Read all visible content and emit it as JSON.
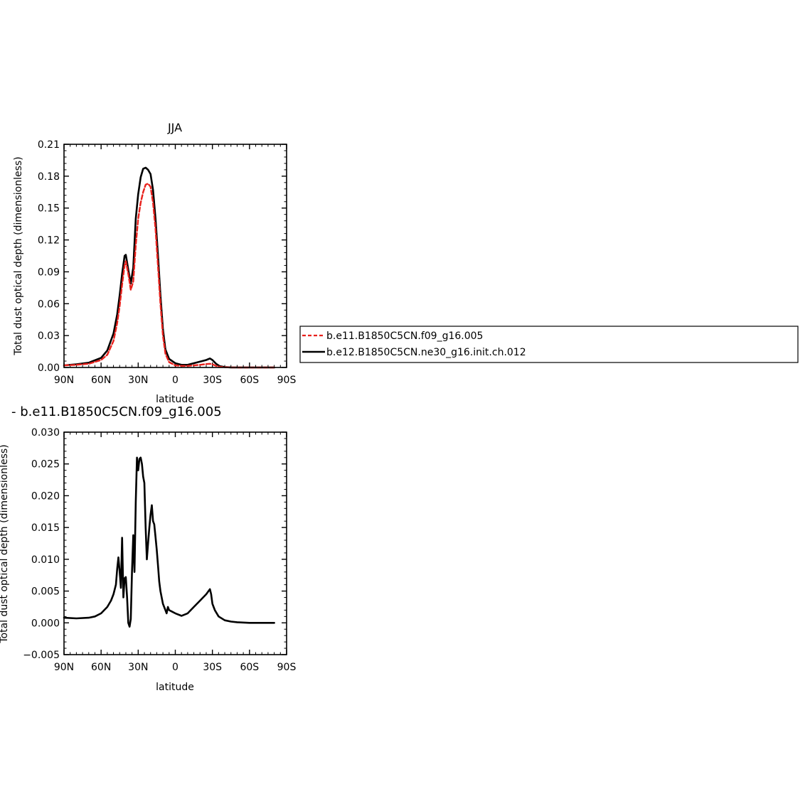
{
  "chart_data": [
    {
      "type": "line",
      "title": "JJA",
      "xlabel": "latitude",
      "ylabel": "Total dust optical depth (dimensionless)",
      "xlim": [
        -90,
        90
      ],
      "ylim": [
        0,
        0.21
      ],
      "xticks": [
        -90,
        -60,
        -30,
        0,
        30,
        60,
        90
      ],
      "xtick_labels": [
        "90N",
        "60N",
        "30N",
        "0",
        "30S",
        "60S",
        "90S"
      ],
      "yticks": [
        0,
        0.03,
        0.06,
        0.09,
        0.12,
        0.15,
        0.18,
        0.21
      ],
      "ytick_labels": [
        "0.00",
        "0.03",
        "0.06",
        "0.09",
        "0.12",
        "0.15",
        "0.18",
        "0.21"
      ],
      "legend": "right",
      "series": [
        {
          "name": "b.e11.B1850C5CN.f09_g16.005",
          "color": "#e8211c",
          "style": "dashed",
          "x": [
            -90,
            -80,
            -70,
            -60,
            -55,
            -50,
            -47,
            -45,
            -43,
            -41,
            -40,
            -38,
            -36,
            -34,
            -32,
            -30,
            -28,
            -26,
            -24,
            -22,
            -20,
            -18,
            -16,
            -14,
            -12,
            -10,
            -8,
            -5,
            0,
            5,
            10,
            15,
            20,
            25,
            28,
            30,
            33,
            36,
            40,
            45,
            50,
            60,
            70,
            80
          ],
          "y": [
            0.002,
            0.0025,
            0.0035,
            0.007,
            0.012,
            0.025,
            0.042,
            0.058,
            0.078,
            0.096,
            0.1,
            0.088,
            0.073,
            0.081,
            0.115,
            0.14,
            0.155,
            0.165,
            0.172,
            0.173,
            0.17,
            0.155,
            0.13,
            0.095,
            0.06,
            0.03,
            0.013,
            0.005,
            0.002,
            0.0015,
            0.0015,
            0.002,
            0.0025,
            0.0032,
            0.0035,
            0.003,
            0.0015,
            0.0006,
            0.0002,
            0.0001,
            0.0,
            0.0,
            0.0,
            0.0
          ]
        },
        {
          "name": "b.e12.B1850C5CN.ne30_g16.init.ch.012",
          "color": "#000000",
          "style": "solid",
          "x": [
            -90,
            -80,
            -70,
            -60,
            -55,
            -50,
            -47,
            -45,
            -43,
            -41,
            -40,
            -38,
            -36,
            -34,
            -32,
            -30,
            -28,
            -26,
            -24,
            -22,
            -20,
            -18,
            -16,
            -14,
            -12,
            -10,
            -8,
            -5,
            0,
            5,
            10,
            15,
            20,
            25,
            28,
            30,
            33,
            36,
            40,
            45,
            50,
            60,
            70,
            80
          ],
          "y": [
            0.002,
            0.003,
            0.0045,
            0.009,
            0.016,
            0.032,
            0.05,
            0.068,
            0.088,
            0.105,
            0.106,
            0.092,
            0.079,
            0.094,
            0.14,
            0.163,
            0.179,
            0.187,
            0.188,
            0.186,
            0.182,
            0.167,
            0.14,
            0.105,
            0.068,
            0.036,
            0.017,
            0.008,
            0.004,
            0.0025,
            0.0025,
            0.004,
            0.0055,
            0.007,
            0.0085,
            0.007,
            0.0035,
            0.0012,
            0.0004,
            0.0001,
            0.0,
            0.0,
            0.0,
            0.0
          ]
        }
      ]
    },
    {
      "type": "line",
      "title": " - b.e11.B1850C5CN.f09_g16.005",
      "xlabel": "latitude",
      "ylabel": "Total dust optical depth (dimensionless)",
      "xlim": [
        -90,
        90
      ],
      "ylim": [
        -0.005,
        0.03
      ],
      "xticks": [
        -90,
        -60,
        -30,
        0,
        30,
        60,
        90
      ],
      "xtick_labels": [
        "90N",
        "60N",
        "30N",
        "0",
        "30S",
        "60S",
        "90S"
      ],
      "yticks": [
        -0.005,
        0,
        0.005,
        0.01,
        0.015,
        0.02,
        0.025,
        0.03
      ],
      "ytick_labels": [
        "−0.005",
        "0.000",
        "0.005",
        "0.010",
        "0.015",
        "0.020",
        "0.025",
        "0.030"
      ],
      "series": [
        {
          "color": "#000000",
          "style": "solid",
          "x": [
            -90,
            -80,
            -70,
            -65,
            -60,
            -55,
            -52,
            -50,
            -48,
            -47,
            -46,
            -45,
            -44,
            -43,
            -42,
            -41,
            -40,
            -39,
            -38,
            -37,
            -36,
            -35,
            -34,
            -33,
            -32,
            -31,
            -30,
            -29,
            -28,
            -27,
            -26,
            -25,
            -24,
            -23,
            -22,
            -21,
            -20,
            -19,
            -18,
            -17,
            -16,
            -15,
            -14,
            -13,
            -12,
            -10,
            -8,
            -7,
            -6,
            -5,
            -3,
            0,
            5,
            10,
            15,
            20,
            25,
            28,
            29,
            30,
            32,
            35,
            40,
            45,
            50,
            60,
            70,
            80
          ],
          "y": [
            0.0008,
            0.0007,
            0.0008,
            0.001,
            0.0015,
            0.0025,
            0.0035,
            0.0045,
            0.006,
            0.0085,
            0.0103,
            0.008,
            0.0055,
            0.0134,
            0.004,
            0.007,
            0.0072,
            0.004,
            0.0,
            -0.0006,
            0.0006,
            0.008,
            0.0138,
            0.008,
            0.019,
            0.026,
            0.024,
            0.0258,
            0.026,
            0.025,
            0.023,
            0.022,
            0.015,
            0.01,
            0.0125,
            0.015,
            0.017,
            0.0185,
            0.016,
            0.0155,
            0.0135,
            0.0115,
            0.009,
            0.0065,
            0.005,
            0.003,
            0.002,
            0.0015,
            0.0025,
            0.002,
            0.0018,
            0.0015,
            0.0011,
            0.0015,
            0.0025,
            0.0035,
            0.0045,
            0.0053,
            0.0045,
            0.003,
            0.002,
            0.001,
            0.0004,
            0.0002,
            0.0001,
            0.0,
            0.0,
            0.0
          ]
        }
      ]
    }
  ]
}
